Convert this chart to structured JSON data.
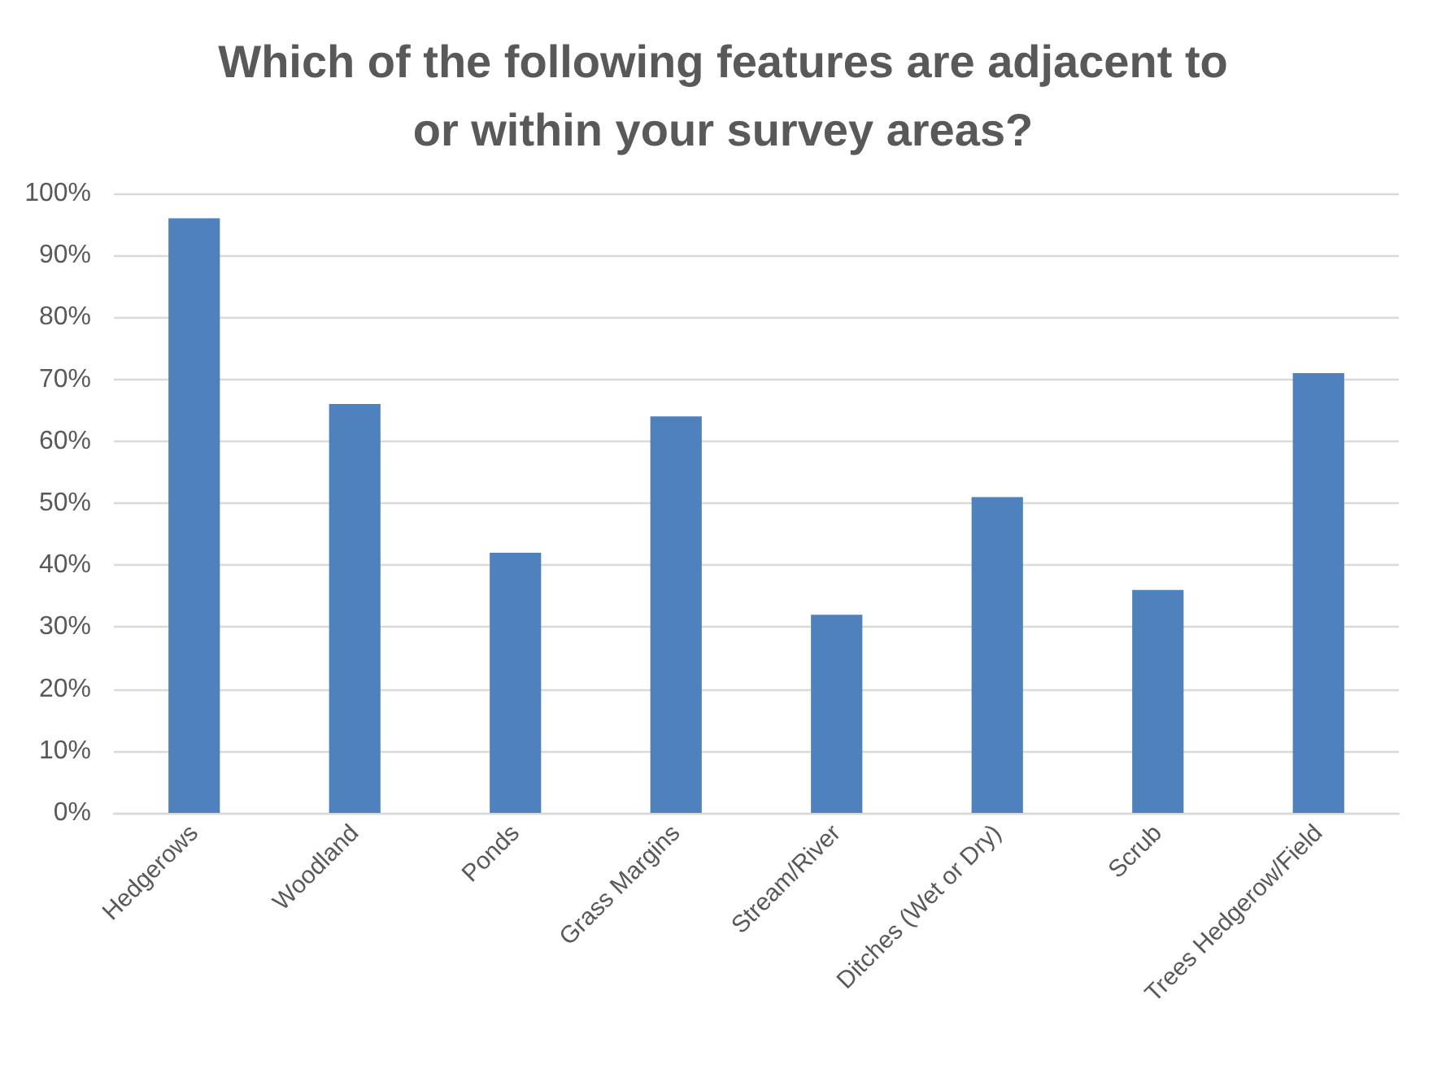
{
  "chart_data": {
    "type": "bar",
    "title": "Which of the following features are adjacent to\nor within your survey areas?",
    "categories": [
      "Hedgerows",
      "Woodland",
      "Ponds",
      "Grass Margins",
      "Stream/River",
      "Ditches (Wet or Dry)",
      "Scrub",
      "Trees Hedgerow/Field"
    ],
    "values": [
      96,
      66,
      42,
      64,
      32,
      51,
      36,
      71
    ],
    "color": "#4f81bd",
    "ylim": [
      0,
      100
    ],
    "yticks": [
      {
        "value": 0,
        "label": "0%"
      },
      {
        "value": 10,
        "label": "10%"
      },
      {
        "value": 20,
        "label": "20%"
      },
      {
        "value": 30,
        "label": "30%"
      },
      {
        "value": 40,
        "label": "40%"
      },
      {
        "value": 50,
        "label": "50%"
      },
      {
        "value": 60,
        "label": "60%"
      },
      {
        "value": 70,
        "label": "70%"
      },
      {
        "value": 80,
        "label": "80%"
      },
      {
        "value": 90,
        "label": "90%"
      },
      {
        "value": 100,
        "label": "100%"
      }
    ],
    "grid": "y"
  }
}
